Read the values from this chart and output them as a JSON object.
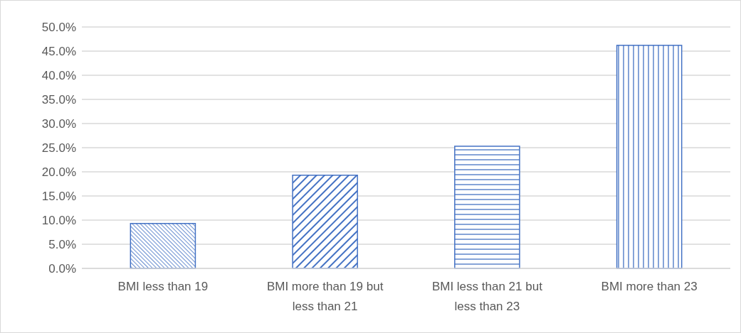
{
  "chart_data": {
    "type": "bar",
    "categories": [
      "BMI less than 19",
      "BMI more than 19 but less than 21",
      "BMI less than 21 but less than 23",
      "BMI more than 23"
    ],
    "values": [
      9.3,
      19.3,
      25.3,
      46.2
    ],
    "color": "#4472c4",
    "ylim": [
      0,
      50
    ],
    "yticks": [
      {
        "value": 0,
        "label": "0.0%"
      },
      {
        "value": 5,
        "label": "5.0%"
      },
      {
        "value": 10,
        "label": "10.0%"
      },
      {
        "value": 15,
        "label": "15.0%"
      },
      {
        "value": 20,
        "label": "20.0%"
      },
      {
        "value": 25,
        "label": "25.0%"
      },
      {
        "value": 30,
        "label": "30.0%"
      },
      {
        "value": 35,
        "label": "35.0%"
      },
      {
        "value": 40,
        "label": "40.0%"
      },
      {
        "value": 45,
        "label": "45.0%"
      },
      {
        "value": 50,
        "label": "50.0%"
      }
    ],
    "grid": "y",
    "legend": false
  }
}
